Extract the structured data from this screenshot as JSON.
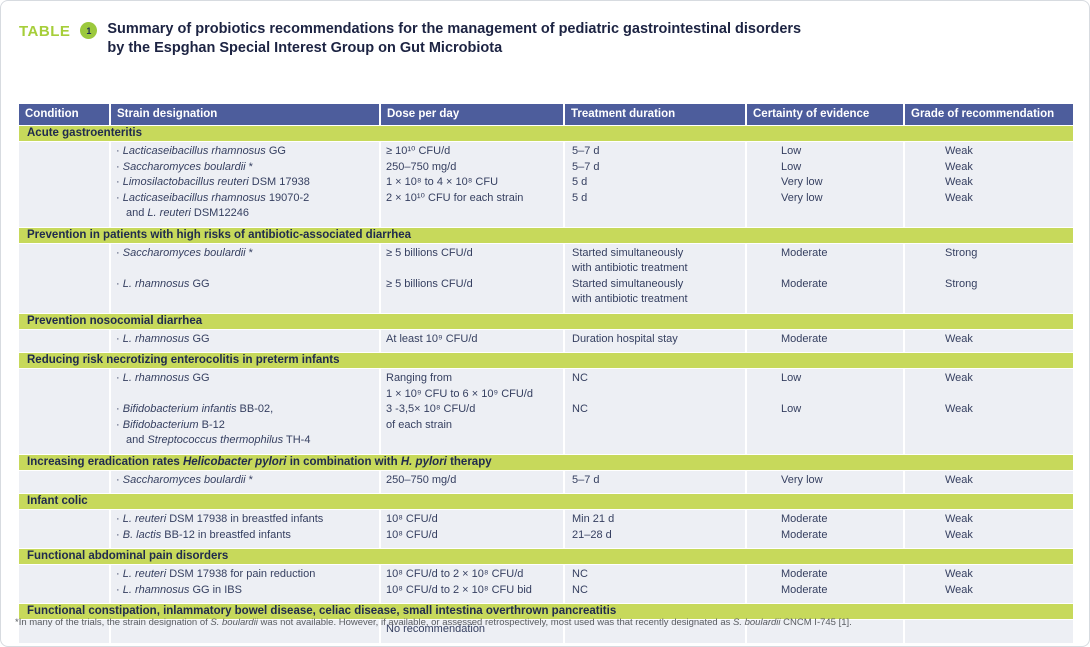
{
  "caption": {
    "label": "TABLE",
    "number": "1",
    "title_line1": "Summary of probiotics recommendations for the management of pediatric gastrointestinal disorders",
    "title_line2": "by the Espghan Special Interest Group on Gut Microbiota"
  },
  "colors": {
    "header_bg": "#4d5d9c",
    "section_bar": "#c7d95b",
    "body_bg": "#edeff4",
    "accent_green": "#a6ce3a"
  },
  "table": {
    "headers": [
      "Condition",
      "Strain designation",
      "Dose per day",
      "Treatment duration",
      "Certainty of evidence",
      "Grade of recommendation"
    ],
    "sections": [
      {
        "title": "Acute gastroenteritis",
        "rows": [
          {
            "strain": [
              "· _Lacticaseibacillus rhamnosus_ GG"
            ],
            "dose": [
              "≥ 10¹⁰ CFU/d"
            ],
            "duration": [
              "5–7 d"
            ],
            "certainty": [
              "Low"
            ],
            "grade": [
              "Weak"
            ]
          },
          {
            "strain": [
              "· _Saccharomyces boulardii_ *"
            ],
            "dose": [
              "250–750 mg/d"
            ],
            "duration": [
              "5–7 d"
            ],
            "certainty": [
              "Low"
            ],
            "grade": [
              "Weak"
            ]
          },
          {
            "strain": [
              "· _Limosilactobacillus reuteri_ DSM 17938"
            ],
            "dose": [
              "1 × 10⁸ to 4 × 10⁸ CFU"
            ],
            "duration": [
              "5 d"
            ],
            "certainty": [
              "Very low"
            ],
            "grade": [
              "Weak"
            ]
          },
          {
            "strain": [
              "· _Lacticaseibacillus rhamnosus_ 19070-2",
              "and _L. reuteri_ DSM12246"
            ],
            "dose": [
              "2 × 10¹⁰ CFU for each strain"
            ],
            "duration": [
              "5 d"
            ],
            "certainty": [
              "Very low"
            ],
            "grade": [
              "Weak"
            ]
          }
        ]
      },
      {
        "title": "Prevention in patients with high risks of antibiotic-associated diarrhea",
        "rows": [
          {
            "strain": [
              "· _Saccharomyces boulardii_ *"
            ],
            "dose": [
              "≥ 5 billions CFU/d"
            ],
            "duration": [
              "Started simultaneously",
              "with antibiotic treatment"
            ],
            "certainty": [
              "Moderate"
            ],
            "grade": [
              "Strong"
            ]
          },
          {
            "strain": [
              "· _L. rhamnosus_ GG"
            ],
            "dose": [
              "≥ 5 billions CFU/d"
            ],
            "duration": [
              "Started simultaneously",
              "with antibiotic treatment"
            ],
            "certainty": [
              "Moderate"
            ],
            "grade": [
              "Strong"
            ]
          }
        ]
      },
      {
        "title": "Prevention nosocomial diarrhea",
        "rows": [
          {
            "strain": [
              "· _L. rhamnosus_ GG"
            ],
            "dose": [
              "At least 10⁹ CFU/d"
            ],
            "duration": [
              "Duration hospital stay"
            ],
            "certainty": [
              "Moderate"
            ],
            "grade": [
              "Weak"
            ]
          }
        ]
      },
      {
        "title": "Reducing risk necrotizing enterocolitis in preterm infants",
        "rows": [
          {
            "strain": [
              "· _L. rhamnosus_ GG"
            ],
            "dose": [
              "Ranging from",
              "1 × 10⁹ CFU to 6 × 10⁹ CFU/d"
            ],
            "duration": [
              "NC"
            ],
            "certainty": [
              "Low"
            ],
            "grade": [
              "Weak"
            ]
          },
          {
            "strain": [
              "· _Bifidobacterium infantis_ BB-02,",
              "· _Bifidobacterium_ B-12",
              "and _Streptococcus thermophilus_ TH-4"
            ],
            "dose": [
              "3 -3,5× 10⁸ CFU/d",
              "of each strain"
            ],
            "duration": [
              "NC"
            ],
            "certainty": [
              "Low"
            ],
            "grade": [
              "Weak"
            ]
          }
        ]
      },
      {
        "title": "Increasing eradication rates _Helicobacter pylori_ in combination with _H. pylori_ therapy",
        "rows": [
          {
            "strain": [
              "· _Saccharomyces boulardii_ *"
            ],
            "dose": [
              "250–750 mg/d"
            ],
            "duration": [
              "5–7 d"
            ],
            "certainty": [
              "Very low"
            ],
            "grade": [
              "Weak"
            ]
          }
        ]
      },
      {
        "title": "Infant colic",
        "rows": [
          {
            "strain": [
              "· _L. reuteri_ DSM 17938 in breastfed infants"
            ],
            "dose": [
              "10⁸ CFU/d"
            ],
            "duration": [
              "Min 21 d"
            ],
            "certainty": [
              "Moderate"
            ],
            "grade": [
              "Weak"
            ]
          },
          {
            "strain": [
              "· _B. lactis_ BB-12 in breastfed infants"
            ],
            "dose": [
              "10⁸ CFU/d"
            ],
            "duration": [
              "21–28 d"
            ],
            "certainty": [
              "Moderate"
            ],
            "grade": [
              "Weak"
            ]
          }
        ]
      },
      {
        "title": "Functional abdominal pain disorders",
        "rows": [
          {
            "strain": [
              "· _L. reuteri_ DSM 17938 for pain reduction"
            ],
            "dose": [
              "10⁸ CFU/d to 2 × 10⁸ CFU/d"
            ],
            "duration": [
              "NC"
            ],
            "certainty": [
              "Moderate"
            ],
            "grade": [
              "Weak"
            ]
          },
          {
            "strain": [
              "· _L. rhamnosus_ GG in IBS"
            ],
            "dose": [
              "10⁸ CFU/d to 2 × 10⁸ CFU bid"
            ],
            "duration": [
              "NC"
            ],
            "certainty": [
              "Moderate"
            ],
            "grade": [
              "Weak"
            ]
          }
        ]
      },
      {
        "title": "Functional constipation, inlammatory bowel disease, celiac disease, small intestina overthrown pancreatitis",
        "rows": [
          {
            "strain": [
              ""
            ],
            "dose": [
              "No recommendation"
            ],
            "duration": [
              ""
            ],
            "certainty": [
              ""
            ],
            "grade": [
              ""
            ]
          }
        ]
      }
    ]
  },
  "footnote": "*In many of the trials, the strain designation of _S. boulardii_ was not available. However, if available, or assessed retrospectively, most used was that recently designated as _S. boulardii_ CNCM I-745 [1]."
}
